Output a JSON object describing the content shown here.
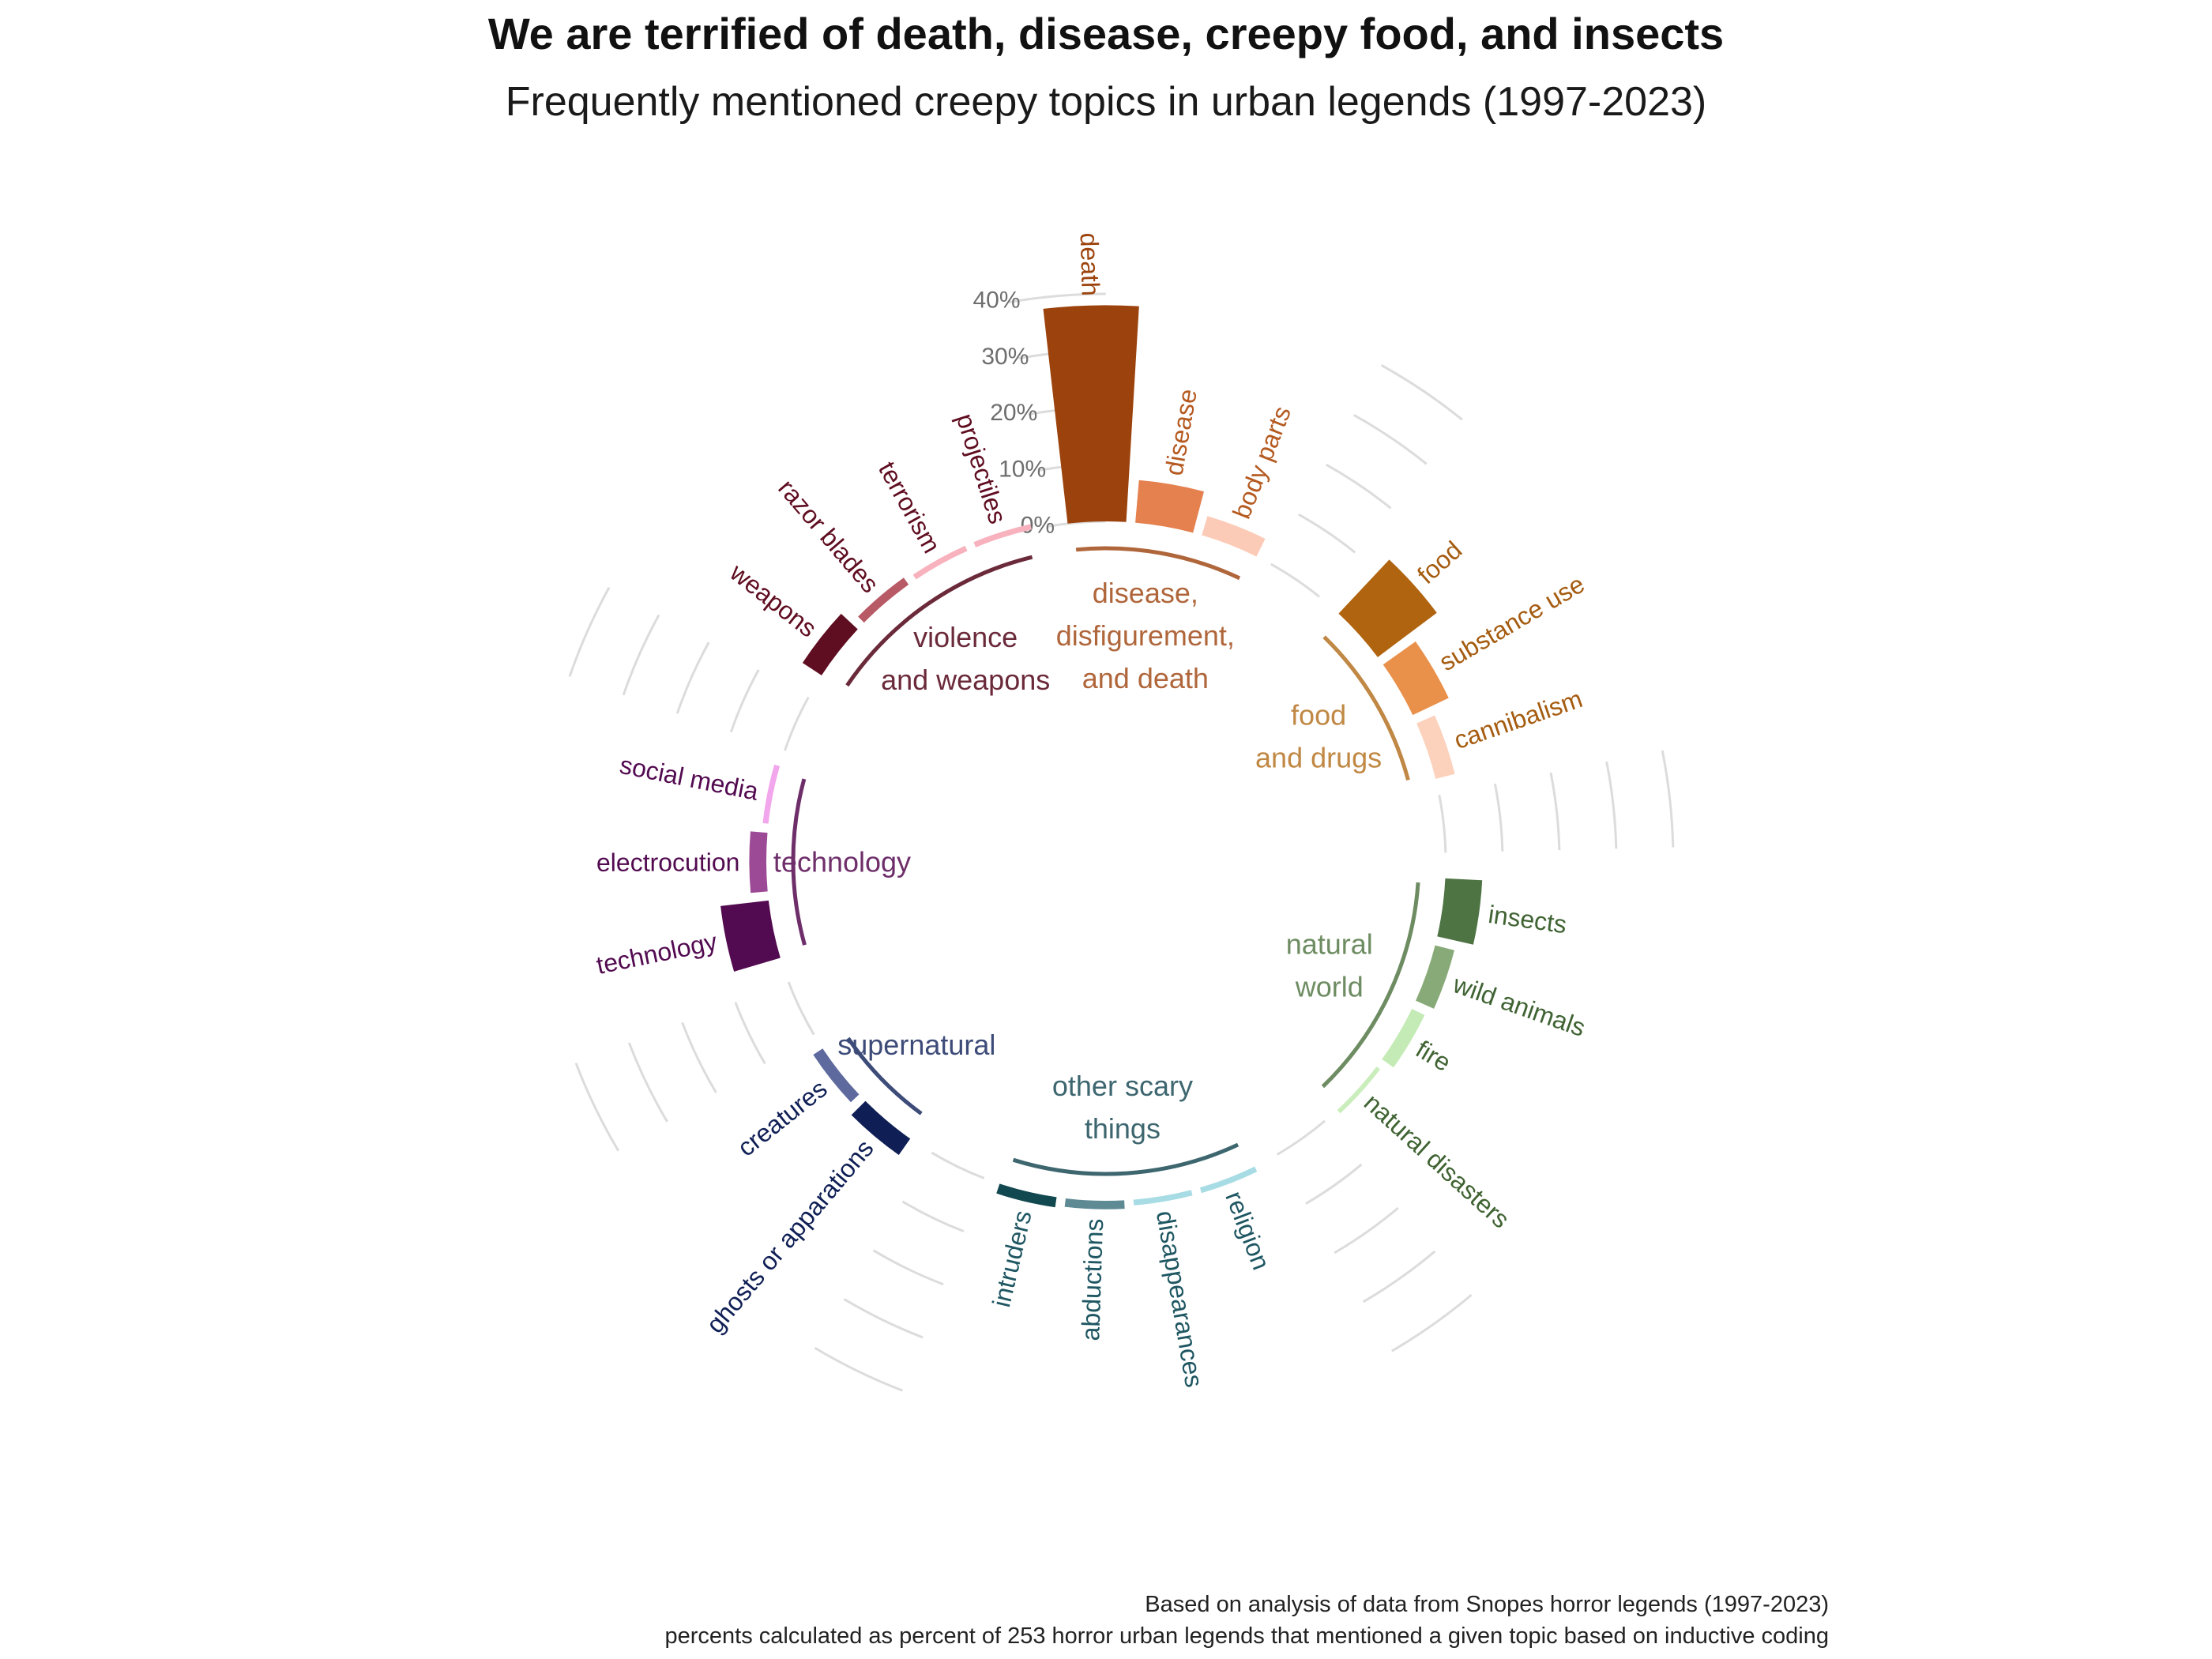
{
  "title": "We are terrified of death, disease, creepy food, and insects",
  "subtitle": "Frequently mentioned creepy topics in urban legends (1997-2023)",
  "caption_lines": [
    "Based on analysis of data from Snopes horror legends (1997-2023)",
    "percents calculated as percent of 253 horror urban legends that mentioned a given topic based on inductive coding"
  ],
  "chart_data": {
    "type": "bar",
    "layout": "radial",
    "unit": "%",
    "ylim": [
      0,
      40
    ],
    "y_ticks": [
      "0%",
      "10%",
      "20%",
      "30%",
      "40%"
    ],
    "grid": true,
    "groups": [
      {
        "name": "disease,\ndisfigurement,\nand death",
        "label_lines": [
          "disease,",
          "disfigurement,",
          "and death"
        ],
        "color": "#b0663b",
        "bars": [
          {
            "label": "death",
            "value": 38,
            "color": "#9c430d",
            "label_color": "#9c430d"
          },
          {
            "label": "disease",
            "value": 7.5,
            "color": "#e5804f",
            "label_color": "#b55a20"
          },
          {
            "label": "body parts",
            "value": 3.5,
            "color": "#fbcbb8",
            "label_color": "#b55a20"
          }
        ]
      },
      {
        "name": "food\nand drugs",
        "label_lines": [
          "food",
          "and drugs"
        ],
        "color": "#c08844",
        "bars": [
          {
            "label": "food",
            "value": 13,
            "color": "#b0640f",
            "label_color": "#a55c10"
          },
          {
            "label": "substance use",
            "value": 7,
            "color": "#e9914b",
            "label_color": "#a55c10"
          },
          {
            "label": "cannibalism",
            "value": 3.5,
            "color": "#fcd2bd",
            "label_color": "#a55c10"
          }
        ]
      },
      {
        "name": "natural\nworld",
        "label_lines": [
          "natural",
          "world"
        ],
        "color": "#6e8c62",
        "bars": [
          {
            "label": "insects",
            "value": 6.5,
            "color": "#4e7444",
            "label_color": "#3f6332"
          },
          {
            "label": "wild animals",
            "value": 3.5,
            "color": "#88aa78",
            "label_color": "#3f6332"
          },
          {
            "label": "fire",
            "value": 2.5,
            "color": "#c4ebb6",
            "label_color": "#3f6332"
          },
          {
            "label": "natural disasters",
            "value": 0.8,
            "color": "#c9eebc",
            "label_color": "#3f6332"
          }
        ]
      },
      {
        "name": "other scary\nthings",
        "label_lines": [
          "other scary",
          "things"
        ],
        "color": "#3d666f",
        "bars": [
          {
            "label": "religion",
            "value": 1,
            "color": "#a8dce5",
            "label_color": "#1e5662"
          },
          {
            "label": "disappearances",
            "value": 1,
            "color": "#a8dce5",
            "label_color": "#1e5662"
          },
          {
            "label": "abductions",
            "value": 1.5,
            "color": "#5e8a94",
            "label_color": "#1e5662"
          },
          {
            "label": "intruders",
            "value": 1.8,
            "color": "#12484f",
            "label_color": "#1e5662"
          }
        ]
      },
      {
        "name": "supernatural",
        "label_lines": [
          "supernatural"
        ],
        "color": "#3d4b78",
        "bars": [
          {
            "label": "ghosts or apparations",
            "value": 3.5,
            "color": "#0f1f55",
            "label_color": "#0f1f55"
          },
          {
            "label": "creatures",
            "value": 2,
            "color": "#5e6a9e",
            "label_color": "#0f1f55"
          }
        ]
      },
      {
        "name": "technology",
        "label_lines": [
          "technology"
        ],
        "color": "#6e2e6a",
        "bars": [
          {
            "label": "technology",
            "value": 8.5,
            "color": "#520a50",
            "label_color": "#520a50"
          },
          {
            "label": "electrocution",
            "value": 3,
            "color": "#9c4a96",
            "label_color": "#520a50"
          },
          {
            "label": "social media",
            "value": 1,
            "color": "#f2a6ec",
            "label_color": "#520a50"
          }
        ]
      },
      {
        "name": "violence\nand weapons",
        "label_lines": [
          "violence",
          "and weapons"
        ],
        "color": "#6b2a3a",
        "bars": [
          {
            "label": "weapons",
            "value": 4,
            "color": "#5f0d20",
            "label_color": "#5f0d20"
          },
          {
            "label": "razor blades",
            "value": 1.5,
            "color": "#b85a66",
            "label_color": "#5f0d20"
          },
          {
            "label": "terrorism",
            "value": 1,
            "color": "#f7b2be",
            "label_color": "#5f0d20"
          },
          {
            "label": "projectiles",
            "value": 1,
            "color": "#f7b2be",
            "label_color": "#5f0d20"
          }
        ]
      }
    ]
  }
}
